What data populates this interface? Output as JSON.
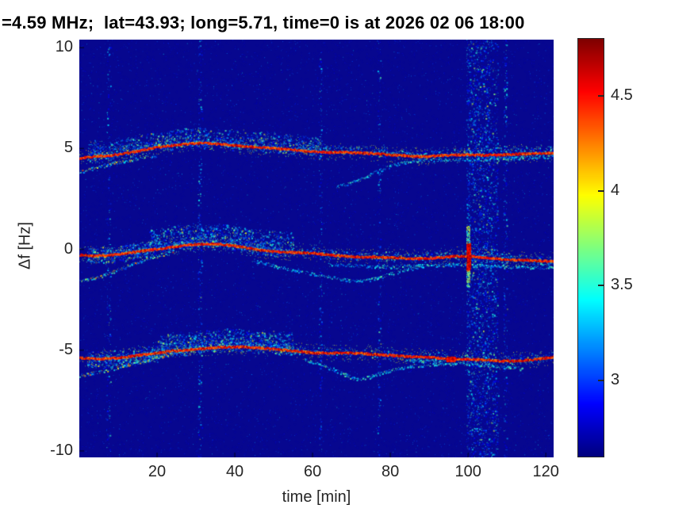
{
  "chart_data": {
    "type": "heatmap",
    "title": "=4.59 MHz;  lat=43.93; long=5.71, time=0 is at 2026 02 06 18:00",
    "xlabel": "time [min]",
    "ylabel": "Δf [Hz]",
    "xlim": [
      0,
      122
    ],
    "ylim": [
      -10.32,
      10.4
    ],
    "xticks": [
      20,
      40,
      60,
      80,
      100,
      120
    ],
    "yticks": [
      10,
      5,
      0,
      -5,
      -10
    ],
    "grid": false,
    "colormap": "jet",
    "clim": [
      2.6,
      4.8
    ],
    "colorbar_ticks": [
      3,
      3.5,
      4,
      4.5
    ],
    "colorbar_position": "right",
    "background_value_color": "#07078F",
    "traces": [
      {
        "name": "upper-doppler-track",
        "points": [
          [
            0,
            4.55
          ],
          [
            4,
            4.65
          ],
          [
            8,
            4.7
          ],
          [
            12,
            4.8
          ],
          [
            16,
            4.95
          ],
          [
            20,
            5.1
          ],
          [
            24,
            5.2
          ],
          [
            28,
            5.28
          ],
          [
            32,
            5.3
          ],
          [
            36,
            5.25
          ],
          [
            40,
            5.18
          ],
          [
            44,
            5.12
          ],
          [
            48,
            5.08
          ],
          [
            52,
            5.02
          ],
          [
            56,
            4.95
          ],
          [
            60,
            4.88
          ],
          [
            64,
            4.85
          ],
          [
            68,
            4.85
          ],
          [
            72,
            4.82
          ],
          [
            76,
            4.78
          ],
          [
            80,
            4.72
          ],
          [
            84,
            4.68
          ],
          [
            88,
            4.62
          ],
          [
            92,
            4.68
          ],
          [
            96,
            4.72
          ],
          [
            100,
            4.72
          ],
          [
            104,
            4.7
          ],
          [
            108,
            4.72
          ],
          [
            112,
            4.76
          ],
          [
            116,
            4.78
          ],
          [
            120,
            4.8
          ],
          [
            122,
            4.8
          ]
        ],
        "cloud": [
          {
            "t0": 2,
            "t1": 62,
            "above": 0.75,
            "below": 0.25,
            "n": 2400
          },
          {
            "t0": 62,
            "t1": 122,
            "above": 0.3,
            "below": 0.15,
            "n": 900
          }
        ],
        "branches": [
          {
            "hot": true,
            "points": [
              [
                0,
                3.85
              ],
              [
                4,
                4.05
              ],
              [
                8,
                4.25
              ],
              [
                12,
                4.4
              ],
              [
                16,
                4.55
              ],
              [
                20,
                4.7
              ]
            ]
          },
          {
            "hot": false,
            "points": [
              [
                66,
                3.1
              ],
              [
                69,
                3.25
              ],
              [
                72,
                3.45
              ],
              [
                75,
                3.75
              ],
              [
                78,
                4.0
              ],
              [
                81,
                4.2
              ],
              [
                84,
                4.35
              ],
              [
                88,
                4.42
              ],
              [
                92,
                4.45
              ],
              [
                96,
                4.45
              ],
              [
                100,
                4.48
              ],
              [
                104,
                4.5
              ],
              [
                108,
                4.5
              ],
              [
                112,
                4.55
              ],
              [
                116,
                4.58
              ],
              [
                120,
                4.6
              ],
              [
                122,
                4.62
              ]
            ]
          }
        ]
      },
      {
        "name": "center-doppler-track",
        "points": [
          [
            0,
            -0.25
          ],
          [
            4,
            -0.3
          ],
          [
            8,
            -0.25
          ],
          [
            12,
            -0.15
          ],
          [
            16,
            -0.05
          ],
          [
            20,
            0.05
          ],
          [
            24,
            0.15
          ],
          [
            28,
            0.25
          ],
          [
            32,
            0.3
          ],
          [
            36,
            0.28
          ],
          [
            40,
            0.2
          ],
          [
            44,
            0.08
          ],
          [
            48,
            -0.05
          ],
          [
            52,
            -0.1
          ],
          [
            56,
            -0.12
          ],
          [
            60,
            -0.15
          ],
          [
            64,
            -0.25
          ],
          [
            68,
            -0.3
          ],
          [
            72,
            -0.35
          ],
          [
            76,
            -0.35
          ],
          [
            80,
            -0.38
          ],
          [
            84,
            -0.42
          ],
          [
            88,
            -0.42
          ],
          [
            92,
            -0.38
          ],
          [
            96,
            -0.32
          ],
          [
            100,
            -0.3
          ],
          [
            104,
            -0.38
          ],
          [
            108,
            -0.45
          ],
          [
            112,
            -0.5
          ],
          [
            116,
            -0.52
          ],
          [
            120,
            -0.55
          ],
          [
            122,
            -0.55
          ]
        ],
        "cloud": [
          {
            "t0": 2,
            "t1": 18,
            "above": 0.4,
            "below": 0.4,
            "n": 700
          },
          {
            "t0": 18,
            "t1": 55,
            "above": 1.0,
            "below": 0.25,
            "n": 2100
          },
          {
            "t0": 55,
            "t1": 122,
            "above": 0.25,
            "below": 0.2,
            "n": 800
          }
        ],
        "branches": [
          {
            "hot": true,
            "points": [
              [
                0,
                -1.6
              ],
              [
                4,
                -1.4
              ],
              [
                8,
                -1.15
              ],
              [
                12,
                -0.85
              ],
              [
                16,
                -0.55
              ],
              [
                20,
                -0.3
              ],
              [
                24,
                -0.1
              ]
            ]
          },
          {
            "hot": false,
            "points": [
              [
                44,
                -0.5
              ],
              [
                48,
                -0.7
              ],
              [
                52,
                -0.9
              ],
              [
                56,
                -1.05
              ],
              [
                60,
                -1.2
              ],
              [
                64,
                -1.35
              ],
              [
                68,
                -1.5
              ],
              [
                72,
                -1.55
              ],
              [
                76,
                -1.45
              ],
              [
                80,
                -1.2
              ],
              [
                84,
                -1.0
              ],
              [
                88,
                -0.85
              ]
            ]
          },
          {
            "hot": false,
            "points": [
              [
                64,
                -0.75
              ],
              [
                72,
                -0.8
              ],
              [
                80,
                -0.85
              ],
              [
                88,
                -0.8
              ],
              [
                96,
                -0.75
              ],
              [
                104,
                -0.8
              ],
              [
                112,
                -0.85
              ],
              [
                120,
                -0.9
              ],
              [
                122,
                -0.9
              ]
            ]
          }
        ]
      },
      {
        "name": "lower-doppler-track",
        "points": [
          [
            0,
            -5.35
          ],
          [
            4,
            -5.4
          ],
          [
            8,
            -5.38
          ],
          [
            12,
            -5.3
          ],
          [
            16,
            -5.2
          ],
          [
            20,
            -5.1
          ],
          [
            24,
            -5.0
          ],
          [
            28,
            -4.95
          ],
          [
            32,
            -4.88
          ],
          [
            36,
            -4.82
          ],
          [
            40,
            -4.8
          ],
          [
            44,
            -4.82
          ],
          [
            48,
            -4.88
          ],
          [
            52,
            -4.95
          ],
          [
            56,
            -5.02
          ],
          [
            60,
            -5.1
          ],
          [
            64,
            -5.12
          ],
          [
            68,
            -5.1
          ],
          [
            72,
            -5.12
          ],
          [
            76,
            -5.18
          ],
          [
            80,
            -5.22
          ],
          [
            84,
            -5.28
          ],
          [
            88,
            -5.3
          ],
          [
            92,
            -5.35
          ],
          [
            96,
            -5.4
          ],
          [
            100,
            -5.42
          ],
          [
            104,
            -5.45
          ],
          [
            108,
            -5.5
          ],
          [
            112,
            -5.5
          ],
          [
            116,
            -5.45
          ],
          [
            120,
            -5.35
          ],
          [
            122,
            -5.3
          ]
        ],
        "cloud": [
          {
            "t0": 2,
            "t1": 20,
            "above": 0.35,
            "below": 0.5,
            "n": 800
          },
          {
            "t0": 20,
            "t1": 55,
            "above": 0.85,
            "below": 0.25,
            "n": 1900
          },
          {
            "t0": 55,
            "t1": 122,
            "above": 0.25,
            "below": 0.2,
            "n": 700
          }
        ],
        "branches": [
          {
            "hot": true,
            "points": [
              [
                0,
                -6.25
              ],
              [
                4,
                -6.1
              ],
              [
                8,
                -5.95
              ],
              [
                12,
                -5.75
              ],
              [
                16,
                -5.55
              ],
              [
                20,
                -5.35
              ],
              [
                24,
                -5.15
              ],
              [
                28,
                -5.0
              ]
            ]
          },
          {
            "hot": false,
            "points": [
              [
                58,
                -5.45
              ],
              [
                62,
                -5.7
              ],
              [
                66,
                -6.0
              ],
              [
                70,
                -6.35
              ],
              [
                72,
                -6.45
              ],
              [
                74,
                -6.35
              ],
              [
                78,
                -6.1
              ],
              [
                82,
                -5.9
              ],
              [
                86,
                -5.78
              ],
              [
                90,
                -5.7
              ],
              [
                94,
                -5.65
              ],
              [
                98,
                -5.62
              ],
              [
                102,
                -5.68
              ],
              [
                106,
                -5.75
              ],
              [
                110,
                -5.85
              ],
              [
                114,
                -5.9
              ]
            ]
          },
          {
            "hot": false,
            "points": [
              [
                84,
                -5.5
              ],
              [
                88,
                -5.52
              ],
              [
                92,
                -5.5
              ],
              [
                96,
                -5.45
              ]
            ]
          }
        ]
      }
    ],
    "noise_columns": [
      {
        "t": 7.5,
        "w": 0.5,
        "s": 0.22
      },
      {
        "t": 31,
        "w": 0.5,
        "s": 0.28
      },
      {
        "t": 62,
        "w": 0.4,
        "s": 0.22
      },
      {
        "t": 77,
        "w": 0.4,
        "s": 0.18
      },
      {
        "t": 100,
        "w": 0.5,
        "s": 0.5
      },
      {
        "t": 103,
        "w": 2.4,
        "s": 1.0
      },
      {
        "t": 106.5,
        "w": 1.2,
        "s": 0.75
      },
      {
        "t": 109.5,
        "w": 0.5,
        "s": 0.3
      }
    ],
    "hotspots": [
      {
        "type": "vertical-streak",
        "t": 100,
        "f": -0.35,
        "half_height": 0.95,
        "w": 0.45
      },
      {
        "type": "horizontal-blob",
        "t": 95.5,
        "f": -5.42,
        "half_height": 0.12,
        "w": 2.2
      }
    ]
  }
}
